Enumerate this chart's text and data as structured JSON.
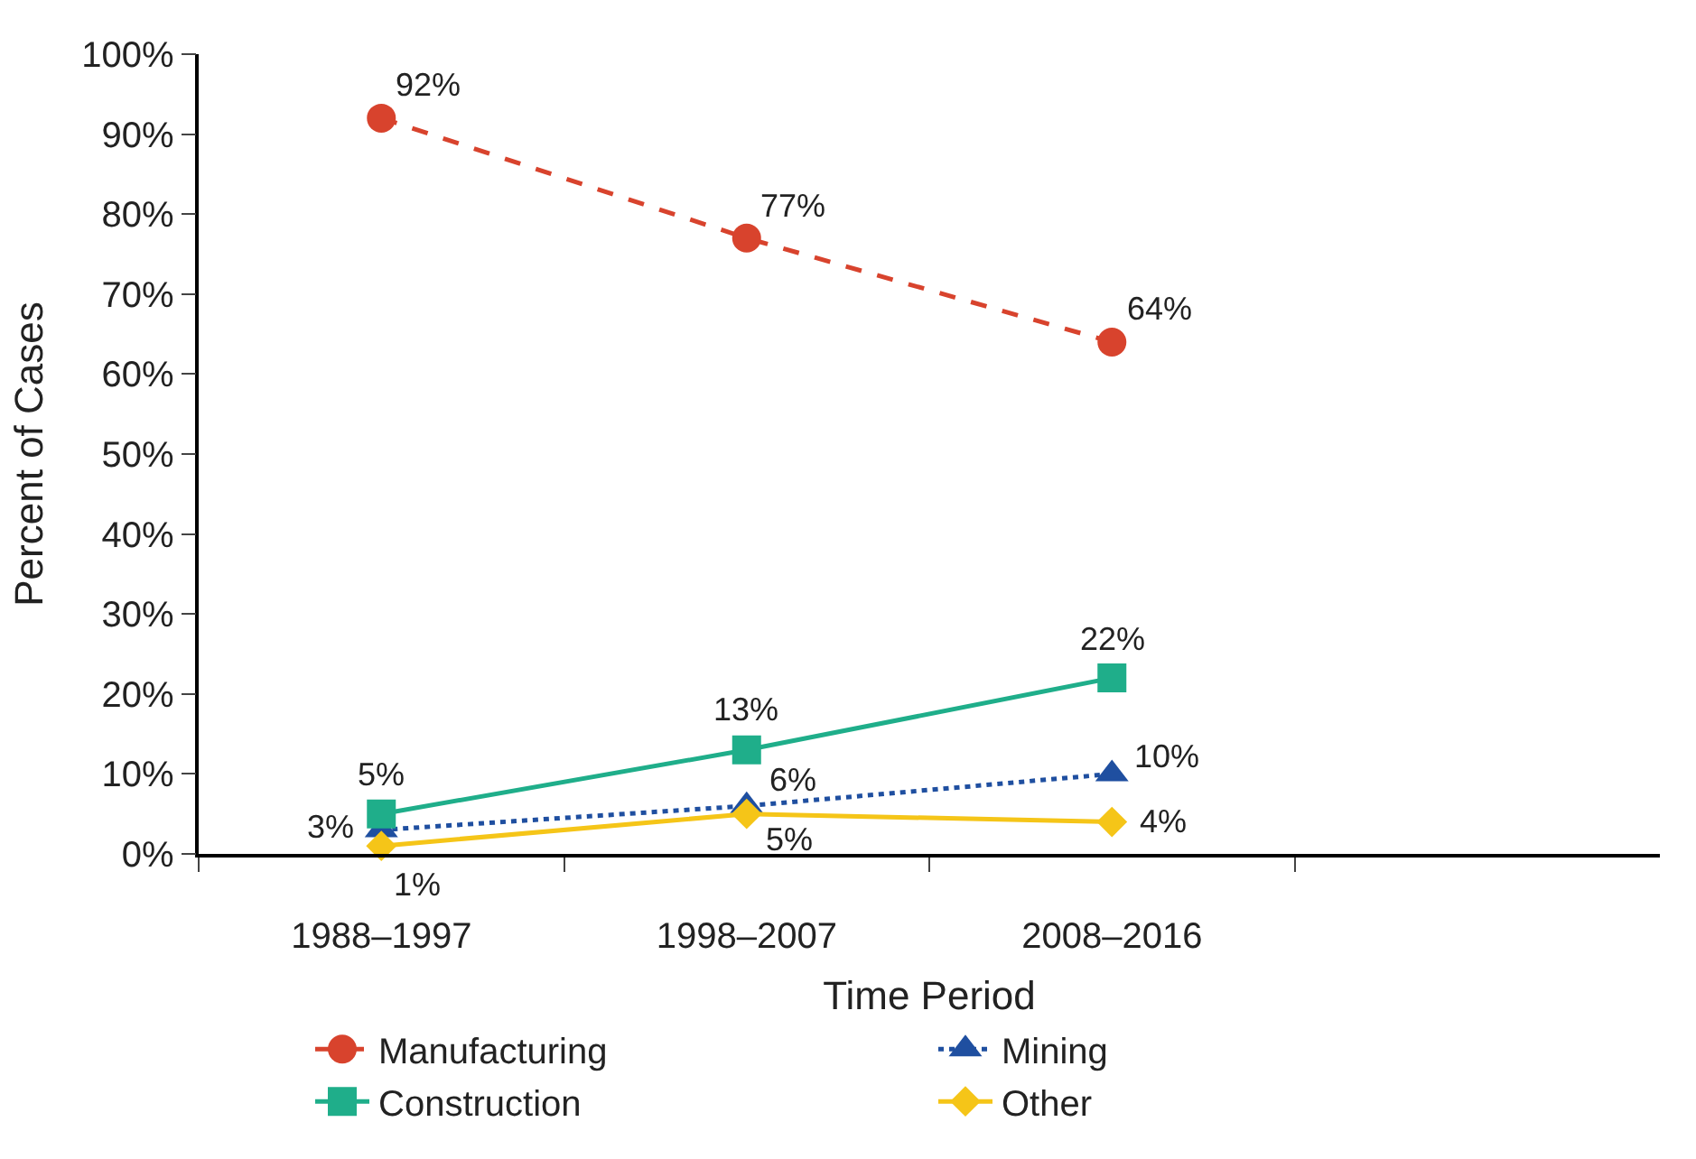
{
  "chart_data": {
    "type": "line",
    "xlabel": "Time Period",
    "ylabel": "Percent of Cases",
    "categories": [
      "1988–1997",
      "1998–2007",
      "2008–2016"
    ],
    "series": [
      {
        "name": "Manufacturing",
        "color": "#d8432d",
        "values": [
          92,
          77,
          64
        ],
        "marker": "circle",
        "line_style": "dashed",
        "value_labels": [
          "92%",
          "77%",
          "64%"
        ]
      },
      {
        "name": "Mining",
        "color": "#1f4fa0",
        "values": [
          3,
          6,
          10
        ],
        "marker": "triangle",
        "line_style": "dotted",
        "value_labels": [
          "3%",
          "6%",
          "10%"
        ]
      },
      {
        "name": "Construction",
        "color": "#1fae8a",
        "values": [
          5,
          13,
          22
        ],
        "marker": "square",
        "line_style": "solid",
        "value_labels": [
          "5%",
          "13%",
          "22%"
        ]
      },
      {
        "name": "Other",
        "color": "#f5c518",
        "values": [
          1,
          5,
          4
        ],
        "marker": "diamond",
        "line_style": "solid",
        "value_labels": [
          "1%",
          "5%",
          "4%"
        ]
      }
    ],
    "ylim": [
      0,
      100
    ],
    "yticks": [
      {
        "value": 0,
        "label": "0%"
      },
      {
        "value": 10,
        "label": "10%"
      },
      {
        "value": 20,
        "label": "20%"
      },
      {
        "value": 30,
        "label": "30%"
      },
      {
        "value": 40,
        "label": "40%"
      },
      {
        "value": 50,
        "label": "50%"
      },
      {
        "value": 60,
        "label": "60%"
      },
      {
        "value": 70,
        "label": "70%"
      },
      {
        "value": 80,
        "label": "80%"
      },
      {
        "value": 90,
        "label": "90%"
      },
      {
        "value": 100,
        "label": "100%"
      }
    ],
    "legend": "bottom"
  }
}
